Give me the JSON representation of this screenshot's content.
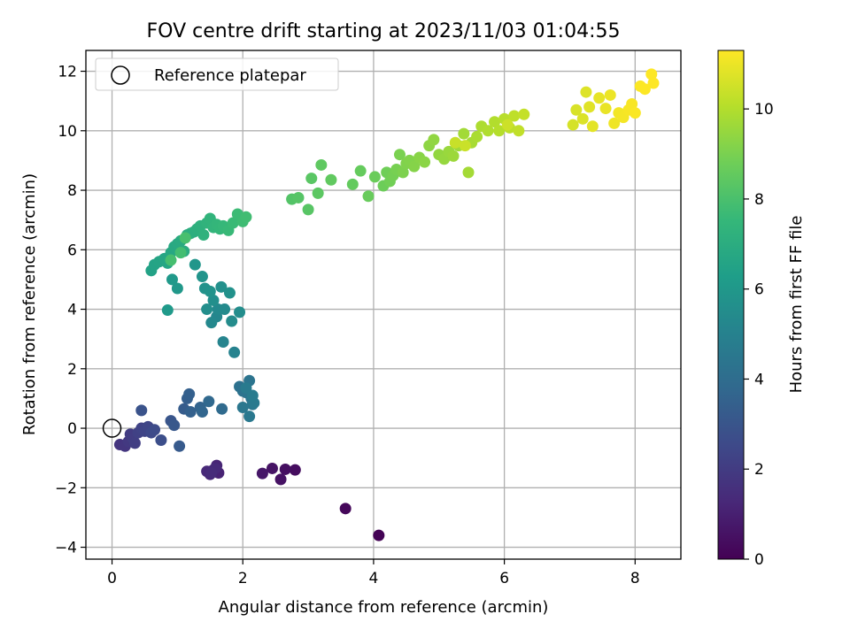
{
  "chart_data": {
    "type": "scatter",
    "title": "FOV centre drift starting at 2023/11/03 01:04:55",
    "xlabel": "Angular distance from reference (arcmin)",
    "ylabel": "Rotation from reference (arcmin)",
    "xlim": [
      -0.4,
      8.7
    ],
    "ylim": [
      -4.4,
      12.7
    ],
    "xticks": [
      0,
      2,
      4,
      6,
      8
    ],
    "yticks": [
      -4,
      -2,
      0,
      2,
      4,
      6,
      8,
      10,
      12
    ],
    "grid": true,
    "legend": {
      "placement": "top-left",
      "entries": [
        "Reference platepar"
      ]
    },
    "reference_point": {
      "x": 0,
      "y": 0,
      "label": "Reference platepar"
    },
    "colorbar": {
      "label": "Hours from first FF file",
      "range": [
        0,
        11.3
      ],
      "ticks": [
        0,
        2,
        4,
        6,
        8,
        10
      ],
      "colormap": [
        "#440154",
        "#482878",
        "#3e4989",
        "#31688e",
        "#26828e",
        "#1f9e89",
        "#35b779",
        "#6ece58",
        "#b5de2b",
        "#fde725"
      ]
    },
    "points": [
      {
        "x": 4.08,
        "y": -3.6,
        "c": 0.05
      },
      {
        "x": 3.57,
        "y": -2.7,
        "c": 0.2
      },
      {
        "x": 2.8,
        "y": -1.4,
        "c": 0.4
      },
      {
        "x": 2.65,
        "y": -1.38,
        "c": 0.45
      },
      {
        "x": 2.58,
        "y": -1.72,
        "c": 0.55
      },
      {
        "x": 2.45,
        "y": -1.35,
        "c": 0.6
      },
      {
        "x": 2.3,
        "y": -1.52,
        "c": 0.7
      },
      {
        "x": 1.63,
        "y": -1.5,
        "c": 1.1
      },
      {
        "x": 1.6,
        "y": -1.25,
        "c": 1.15
      },
      {
        "x": 1.55,
        "y": -1.4,
        "c": 1.2
      },
      {
        "x": 1.5,
        "y": -1.55,
        "c": 1.25
      },
      {
        "x": 1.45,
        "y": -1.45,
        "c": 1.3
      },
      {
        "x": 1.58,
        "y": -1.35,
        "c": 1.35
      },
      {
        "x": 1.52,
        "y": -1.5,
        "c": 1.4
      },
      {
        "x": 0.12,
        "y": -0.55,
        "c": 1.7
      },
      {
        "x": 0.2,
        "y": -0.6,
        "c": 1.8
      },
      {
        "x": 0.25,
        "y": -0.45,
        "c": 1.9
      },
      {
        "x": 0.28,
        "y": -0.2,
        "c": 2.0
      },
      {
        "x": 0.32,
        "y": -0.35,
        "c": 2.05
      },
      {
        "x": 0.35,
        "y": -0.5,
        "c": 2.1
      },
      {
        "x": 0.4,
        "y": -0.15,
        "c": 2.2
      },
      {
        "x": 0.45,
        "y": 0.0,
        "c": 2.3
      },
      {
        "x": 0.5,
        "y": -0.1,
        "c": 2.35
      },
      {
        "x": 0.55,
        "y": 0.05,
        "c": 2.4
      },
      {
        "x": 0.6,
        "y": -0.15,
        "c": 2.5
      },
      {
        "x": 0.65,
        "y": -0.05,
        "c": 2.6
      },
      {
        "x": 0.75,
        "y": -0.4,
        "c": 2.7
      },
      {
        "x": 0.45,
        "y": 0.6,
        "c": 2.9
      },
      {
        "x": 0.9,
        "y": 0.25,
        "c": 3.0
      },
      {
        "x": 0.95,
        "y": 0.1,
        "c": 3.1
      },
      {
        "x": 1.03,
        "y": -0.6,
        "c": 3.2
      },
      {
        "x": 1.1,
        "y": 0.65,
        "c": 3.3
      },
      {
        "x": 1.15,
        "y": 1.0,
        "c": 3.4
      },
      {
        "x": 1.18,
        "y": 1.15,
        "c": 3.45
      },
      {
        "x": 1.2,
        "y": 0.55,
        "c": 3.5
      },
      {
        "x": 1.35,
        "y": 0.7,
        "c": 3.6
      },
      {
        "x": 1.38,
        "y": 0.55,
        "c": 3.7
      },
      {
        "x": 1.48,
        "y": 0.9,
        "c": 3.8
      },
      {
        "x": 1.68,
        "y": 0.65,
        "c": 3.9
      },
      {
        "x": 1.95,
        "y": 1.4,
        "c": 4.2
      },
      {
        "x": 2.0,
        "y": 1.25,
        "c": 4.25
      },
      {
        "x": 2.05,
        "y": 1.2,
        "c": 4.3
      },
      {
        "x": 2.1,
        "y": 1.6,
        "c": 4.35
      },
      {
        "x": 2.13,
        "y": 1.0,
        "c": 4.4
      },
      {
        "x": 2.15,
        "y": 0.8,
        "c": 4.45
      },
      {
        "x": 2.0,
        "y": 0.7,
        "c": 4.5
      },
      {
        "x": 2.1,
        "y": 0.4,
        "c": 4.55
      },
      {
        "x": 2.17,
        "y": 0.85,
        "c": 4.6
      },
      {
        "x": 2.05,
        "y": 1.35,
        "c": 4.65
      },
      {
        "x": 2.15,
        "y": 1.1,
        "c": 4.7
      },
      {
        "x": 1.87,
        "y": 2.55,
        "c": 5.0
      },
      {
        "x": 1.7,
        "y": 2.9,
        "c": 5.1
      },
      {
        "x": 1.6,
        "y": 3.75,
        "c": 5.2
      },
      {
        "x": 1.52,
        "y": 3.55,
        "c": 5.3
      },
      {
        "x": 1.62,
        "y": 4.0,
        "c": 5.35
      },
      {
        "x": 1.72,
        "y": 4.0,
        "c": 5.4
      },
      {
        "x": 1.83,
        "y": 3.6,
        "c": 5.45
      },
      {
        "x": 1.95,
        "y": 3.9,
        "c": 5.5
      },
      {
        "x": 1.45,
        "y": 4.0,
        "c": 5.55
      },
      {
        "x": 1.55,
        "y": 4.3,
        "c": 5.6
      },
      {
        "x": 1.67,
        "y": 4.75,
        "c": 5.65
      },
      {
        "x": 1.8,
        "y": 4.55,
        "c": 5.7
      },
      {
        "x": 1.42,
        "y": 4.7,
        "c": 5.75
      },
      {
        "x": 1.5,
        "y": 4.6,
        "c": 5.8
      },
      {
        "x": 1.38,
        "y": 5.1,
        "c": 5.85
      },
      {
        "x": 1.27,
        "y": 5.5,
        "c": 5.9
      },
      {
        "x": 1.0,
        "y": 4.7,
        "c": 6.0
      },
      {
        "x": 0.92,
        "y": 5.0,
        "c": 6.05
      },
      {
        "x": 0.85,
        "y": 3.97,
        "c": 6.1
      },
      {
        "x": 0.6,
        "y": 5.3,
        "c": 6.5
      },
      {
        "x": 0.65,
        "y": 5.5,
        "c": 6.55
      },
      {
        "x": 0.72,
        "y": 5.6,
        "c": 6.6
      },
      {
        "x": 0.8,
        "y": 5.7,
        "c": 6.65
      },
      {
        "x": 0.85,
        "y": 5.55,
        "c": 6.7
      },
      {
        "x": 0.9,
        "y": 5.9,
        "c": 6.75
      },
      {
        "x": 0.95,
        "y": 6.1,
        "c": 6.8
      },
      {
        "x": 1.0,
        "y": 6.2,
        "c": 6.85
      },
      {
        "x": 1.05,
        "y": 6.3,
        "c": 6.9
      },
      {
        "x": 1.1,
        "y": 5.95,
        "c": 6.95
      },
      {
        "x": 1.15,
        "y": 6.5,
        "c": 7.0
      },
      {
        "x": 1.2,
        "y": 6.55,
        "c": 7.05
      },
      {
        "x": 1.25,
        "y": 6.6,
        "c": 7.1
      },
      {
        "x": 1.3,
        "y": 6.7,
        "c": 7.15
      },
      {
        "x": 1.35,
        "y": 6.8,
        "c": 7.2
      },
      {
        "x": 1.4,
        "y": 6.5,
        "c": 7.25
      },
      {
        "x": 1.45,
        "y": 6.9,
        "c": 7.3
      },
      {
        "x": 1.5,
        "y": 7.05,
        "c": 7.35
      },
      {
        "x": 1.55,
        "y": 6.75,
        "c": 7.4
      },
      {
        "x": 1.6,
        "y": 6.85,
        "c": 7.45
      },
      {
        "x": 1.65,
        "y": 6.7,
        "c": 7.5
      },
      {
        "x": 1.7,
        "y": 6.8,
        "c": 7.55
      },
      {
        "x": 1.78,
        "y": 6.65,
        "c": 7.6
      },
      {
        "x": 1.85,
        "y": 6.9,
        "c": 7.65
      },
      {
        "x": 1.92,
        "y": 7.2,
        "c": 7.7
      },
      {
        "x": 2.0,
        "y": 6.95,
        "c": 7.75
      },
      {
        "x": 2.05,
        "y": 7.1,
        "c": 7.8
      },
      {
        "x": 1.05,
        "y": 5.9,
        "c": 7.85
      },
      {
        "x": 0.9,
        "y": 5.65,
        "c": 7.9
      },
      {
        "x": 1.12,
        "y": 6.4,
        "c": 7.95
      },
      {
        "x": 2.75,
        "y": 7.7,
        "c": 8.2
      },
      {
        "x": 2.85,
        "y": 7.75,
        "c": 8.25
      },
      {
        "x": 3.0,
        "y": 7.35,
        "c": 8.3
      },
      {
        "x": 3.05,
        "y": 8.4,
        "c": 8.35
      },
      {
        "x": 3.15,
        "y": 7.9,
        "c": 8.4
      },
      {
        "x": 3.2,
        "y": 8.85,
        "c": 8.45
      },
      {
        "x": 3.35,
        "y": 8.35,
        "c": 8.5
      },
      {
        "x": 3.68,
        "y": 8.2,
        "c": 8.55
      },
      {
        "x": 3.8,
        "y": 8.65,
        "c": 8.6
      },
      {
        "x": 3.92,
        "y": 7.8,
        "c": 8.65
      },
      {
        "x": 4.02,
        "y": 8.45,
        "c": 8.7
      },
      {
        "x": 4.15,
        "y": 8.15,
        "c": 8.75
      },
      {
        "x": 4.2,
        "y": 8.6,
        "c": 8.8
      },
      {
        "x": 4.25,
        "y": 8.3,
        "c": 8.85
      },
      {
        "x": 4.3,
        "y": 8.5,
        "c": 8.9
      },
      {
        "x": 4.35,
        "y": 8.7,
        "c": 8.95
      },
      {
        "x": 4.4,
        "y": 9.2,
        "c": 9.0
      },
      {
        "x": 4.45,
        "y": 8.6,
        "c": 9.05
      },
      {
        "x": 4.5,
        "y": 8.9,
        "c": 9.1
      },
      {
        "x": 4.55,
        "y": 9.0,
        "c": 9.15
      },
      {
        "x": 4.62,
        "y": 8.8,
        "c": 9.2
      },
      {
        "x": 4.7,
        "y": 9.1,
        "c": 9.25
      },
      {
        "x": 4.78,
        "y": 8.95,
        "c": 9.3
      },
      {
        "x": 4.85,
        "y": 9.5,
        "c": 9.35
      },
      {
        "x": 4.92,
        "y": 9.7,
        "c": 9.4
      },
      {
        "x": 5.0,
        "y": 9.2,
        "c": 9.45
      },
      {
        "x": 5.08,
        "y": 9.05,
        "c": 9.5
      },
      {
        "x": 5.15,
        "y": 9.3,
        "c": 9.55
      },
      {
        "x": 5.22,
        "y": 9.15,
        "c": 9.6
      },
      {
        "x": 5.3,
        "y": 9.5,
        "c": 9.65
      },
      {
        "x": 5.38,
        "y": 9.9,
        "c": 9.7
      },
      {
        "x": 5.45,
        "y": 8.6,
        "c": 9.75
      },
      {
        "x": 5.5,
        "y": 9.6,
        "c": 9.8
      },
      {
        "x": 5.58,
        "y": 9.8,
        "c": 9.85
      },
      {
        "x": 5.65,
        "y": 10.15,
        "c": 9.9
      },
      {
        "x": 5.75,
        "y": 10.0,
        "c": 9.95
      },
      {
        "x": 5.85,
        "y": 10.3,
        "c": 10.0
      },
      {
        "x": 5.92,
        "y": 10.0,
        "c": 10.05
      },
      {
        "x": 6.0,
        "y": 10.4,
        "c": 10.1
      },
      {
        "x": 6.08,
        "y": 10.1,
        "c": 10.15
      },
      {
        "x": 6.15,
        "y": 10.5,
        "c": 10.2
      },
      {
        "x": 6.22,
        "y": 10.0,
        "c": 10.25
      },
      {
        "x": 6.3,
        "y": 10.55,
        "c": 10.3
      },
      {
        "x": 5.25,
        "y": 9.6,
        "c": 10.35
      },
      {
        "x": 5.4,
        "y": 9.5,
        "c": 10.4
      },
      {
        "x": 6.05,
        "y": 10.2,
        "c": 10.45
      },
      {
        "x": 7.05,
        "y": 10.2,
        "c": 10.6
      },
      {
        "x": 7.1,
        "y": 10.7,
        "c": 10.65
      },
      {
        "x": 7.2,
        "y": 10.4,
        "c": 10.7
      },
      {
        "x": 7.25,
        "y": 11.3,
        "c": 10.75
      },
      {
        "x": 7.3,
        "y": 10.8,
        "c": 10.8
      },
      {
        "x": 7.35,
        "y": 10.15,
        "c": 10.85
      },
      {
        "x": 7.45,
        "y": 11.1,
        "c": 10.9
      },
      {
        "x": 7.55,
        "y": 10.75,
        "c": 10.95
      },
      {
        "x": 7.62,
        "y": 11.2,
        "c": 11.0
      },
      {
        "x": 7.68,
        "y": 10.25,
        "c": 11.05
      },
      {
        "x": 7.75,
        "y": 10.6,
        "c": 11.1
      },
      {
        "x": 7.82,
        "y": 10.45,
        "c": 11.15
      },
      {
        "x": 7.9,
        "y": 10.7,
        "c": 11.2
      },
      {
        "x": 7.95,
        "y": 10.9,
        "c": 11.22
      },
      {
        "x": 8.0,
        "y": 10.6,
        "c": 11.24
      },
      {
        "x": 8.08,
        "y": 11.5,
        "c": 11.26
      },
      {
        "x": 8.15,
        "y": 11.4,
        "c": 11.28
      },
      {
        "x": 8.25,
        "y": 11.9,
        "c": 11.3
      },
      {
        "x": 8.28,
        "y": 11.6,
        "c": 11.3
      }
    ]
  }
}
